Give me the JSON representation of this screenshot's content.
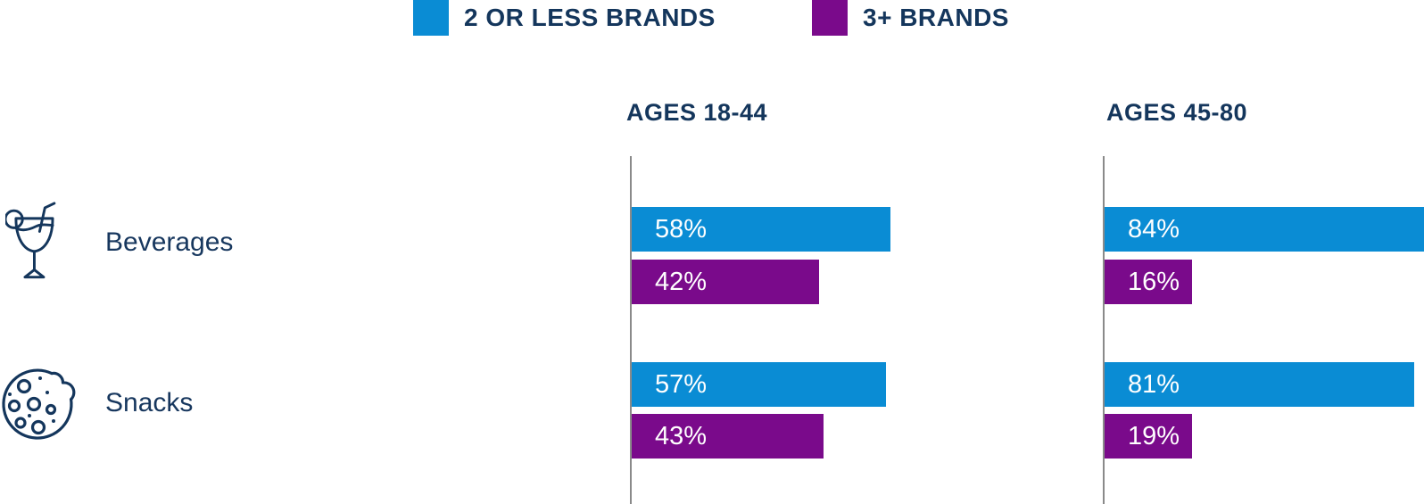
{
  "colors": {
    "blue": "#0A8CD4",
    "purple": "#7A0A8B",
    "navy_text": "#14365C",
    "axis_gray": "#8A8A8A",
    "bar_label_text": "#FFFFFF",
    "background": "#FFFFFF"
  },
  "legend": {
    "items": [
      {
        "label": "2 OR LESS BRANDS",
        "swatch_color": "#0A8CD4"
      },
      {
        "label": "3+ BRANDS",
        "swatch_color": "#7A0A8B"
      }
    ]
  },
  "columns": [
    {
      "header": "AGES 18-44"
    },
    {
      "header": "AGES 45-80"
    }
  ],
  "rows": [
    {
      "label": "Beverages",
      "icon": "cocktail-glass-icon"
    },
    {
      "label": "Snacks",
      "icon": "cookie-icon"
    }
  ],
  "chart_data": {
    "type": "bar",
    "orientation": "horizontal",
    "unit": "%",
    "value_label_format": "{value}%",
    "value_label_position": "inside-start",
    "legend": [
      "2 OR LESS BRANDS",
      "3+ BRANDS"
    ],
    "legend_position": "top-center",
    "panels": [
      "AGES 18-44",
      "AGES 45-80"
    ],
    "categories": [
      "Beverages",
      "Snacks"
    ],
    "series": [
      {
        "name": "2 OR LESS BRANDS",
        "color": "#0A8CD4",
        "values": {
          "AGES 18-44": [
            58,
            57
          ],
          "AGES 45-80": [
            84,
            81
          ]
        }
      },
      {
        "name": "3+ BRANDS",
        "color": "#7A0A8B",
        "values": {
          "AGES 18-44": [
            42,
            43
          ],
          "AGES 45-80": [
            16,
            19
          ]
        }
      }
    ],
    "xlim": [
      0,
      100
    ],
    "grid": false,
    "axis_style": "vertical baseline only, gray"
  }
}
